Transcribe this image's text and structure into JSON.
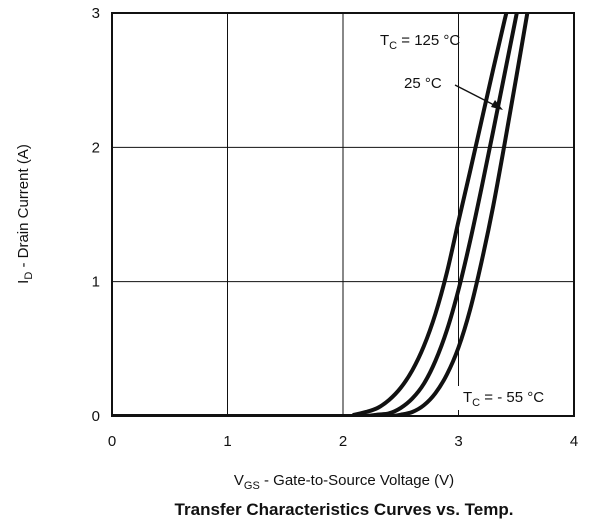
{
  "chart_data": {
    "type": "line",
    "title": "Transfer Characteristics Curves vs. Temp.",
    "xlabel": {
      "main": "V",
      "sub": "GS",
      "rest": " - Gate-to-Source Voltage (V)"
    },
    "ylabel": {
      "main": "I",
      "sub": "D",
      "rest": " - Drain Current (A)"
    },
    "xlim": [
      0,
      4
    ],
    "ylim": [
      0,
      3
    ],
    "xticks": [
      "0",
      "1",
      "2",
      "3",
      "4"
    ],
    "yticks": [
      "0",
      "1",
      "2",
      "3"
    ],
    "grid": true,
    "series": [
      {
        "name": "TC = 125 °C",
        "x": [
          0.0,
          1.0,
          2.0,
          2.1,
          2.2,
          2.3,
          2.4,
          2.5,
          2.6,
          2.7,
          2.8,
          2.9,
          3.0,
          3.1,
          3.2,
          3.3,
          3.4,
          3.5,
          3.55
        ],
        "y": [
          0.0,
          0.0,
          0.0,
          0.01,
          0.03,
          0.06,
          0.12,
          0.21,
          0.34,
          0.52,
          0.76,
          1.07,
          1.45,
          1.82,
          2.2,
          2.58,
          2.95,
          3.3,
          3.5
        ]
      },
      {
        "name": "25 °C",
        "x": [
          0.0,
          1.0,
          2.0,
          2.2,
          2.3,
          2.4,
          2.5,
          2.6,
          2.7,
          2.8,
          2.9,
          3.0,
          3.1,
          3.2,
          3.3,
          3.4,
          3.5,
          3.6
        ],
        "y": [
          0.0,
          0.0,
          0.0,
          0.0,
          0.01,
          0.02,
          0.06,
          0.13,
          0.24,
          0.41,
          0.64,
          0.94,
          1.3,
          1.7,
          2.12,
          2.55,
          2.98,
          3.4
        ]
      },
      {
        "name": "TC = - 55 °C",
        "x": [
          0.0,
          1.0,
          2.0,
          2.4,
          2.5,
          2.6,
          2.7,
          2.8,
          2.9,
          3.0,
          3.1,
          3.2,
          3.3,
          3.4,
          3.5,
          3.6
        ],
        "y": [
          0.0,
          0.0,
          0.0,
          0.0,
          0.01,
          0.03,
          0.08,
          0.17,
          0.31,
          0.51,
          0.79,
          1.15,
          1.56,
          2.03,
          2.52,
          3.02
        ]
      }
    ],
    "annotations": [
      {
        "main": "T",
        "sub": "C",
        "rest": " = 125 °C"
      },
      {
        "main": "",
        "sub": "",
        "rest": "25 °C"
      },
      {
        "main": "T",
        "sub": "C",
        "rest": " = - 55 °C"
      }
    ]
  }
}
